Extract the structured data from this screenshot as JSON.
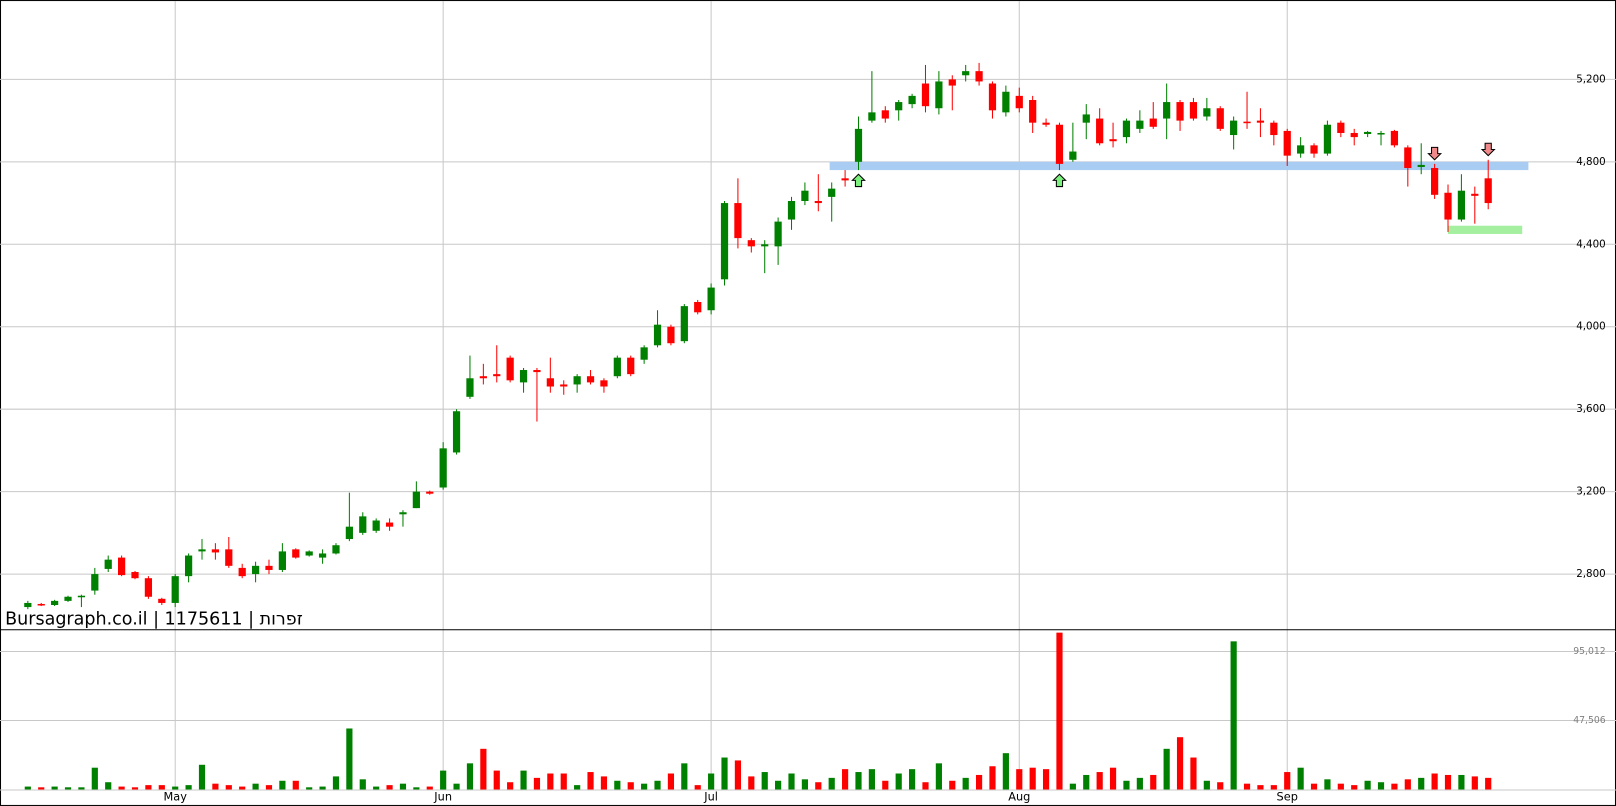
{
  "chart_data": {
    "type": "candlestick",
    "watermark": "Bursagraph.co.il | 1175611 | תורפז",
    "categories": [
      null,
      null,
      null,
      null,
      null,
      null,
      null,
      null,
      null,
      null,
      null,
      "May",
      null,
      null,
      null,
      null,
      null,
      null,
      null,
      null,
      null,
      null,
      null,
      null,
      null,
      null,
      null,
      null,
      null,
      null,
      null,
      "Jun",
      null,
      null,
      null,
      null,
      null,
      null,
      null,
      null,
      null,
      null,
      null,
      null,
      null,
      null,
      null,
      null,
      null,
      null,
      null,
      "Jul",
      null,
      null,
      null,
      null,
      null,
      null,
      null,
      null,
      null,
      null,
      null,
      null,
      null,
      null,
      null,
      null,
      null,
      null,
      null,
      null,
      null,
      null,
      "Aug",
      null,
      null,
      null,
      null,
      null,
      null,
      null,
      null,
      null,
      null,
      null,
      null,
      null,
      null,
      null,
      null,
      null,
      null,
      null,
      "Sep",
      null,
      null,
      null,
      null,
      null,
      null,
      null,
      null,
      null,
      null,
      null,
      null,
      null,
      null,
      null
    ],
    "open": [
      2640,
      2655,
      2650,
      2670,
      2690,
      2720,
      2825,
      2880,
      2810,
      2780,
      2680,
      2660,
      2790,
      2910,
      2920,
      2920,
      2830,
      2800,
      2840,
      2820,
      2920,
      2890,
      2880,
      2900,
      2970,
      3000,
      3010,
      3050,
      3090,
      3120,
      3200,
      3220,
      3390,
      3660,
      3760,
      3770,
      3850,
      3730,
      3790,
      3750,
      3720,
      3720,
      3760,
      3740,
      3760,
      3850,
      3840,
      3910,
      4000,
      3930,
      4120,
      4080,
      4230,
      4600,
      4420,
      4390,
      4390,
      4520,
      4610,
      4610,
      4630,
      4720,
      4800,
      5000,
      5050,
      5050,
      5080,
      5180,
      5060,
      5200,
      5220,
      5240,
      5180,
      5040,
      5120,
      5100,
      4990,
      4980,
      4810,
      4990,
      5010,
      4910,
      4920,
      4960,
      5010,
      5010,
      5090,
      5090,
      5020,
      5060,
      4930,
      4995,
      5000,
      4990,
      4950,
      4840,
      4880,
      4840,
      4990,
      4940,
      4935,
      4935,
      4950,
      4870,
      4775,
      4770,
      4650,
      4520,
      4645,
      4720
    ],
    "high": [
      2670,
      2660,
      2675,
      2695,
      2700,
      2830,
      2890,
      2890,
      2815,
      2790,
      2685,
      2800,
      2900,
      2970,
      2950,
      2980,
      2850,
      2860,
      2870,
      2950,
      2925,
      2915,
      2920,
      2950,
      3195,
      3100,
      3070,
      3070,
      3110,
      3250,
      3205,
      3440,
      3600,
      3860,
      3820,
      3910,
      3860,
      3800,
      3800,
      3850,
      3740,
      3770,
      3790,
      3750,
      3860,
      3860,
      3910,
      4080,
      4010,
      4110,
      4130,
      4210,
      4610,
      4720,
      4430,
      4420,
      4530,
      4630,
      4700,
      4740,
      4700,
      4760,
      5020,
      5240,
      5070,
      5100,
      5130,
      5270,
      5240,
      5220,
      5270,
      5280,
      5190,
      5170,
      5160,
      5120,
      5010,
      4990,
      4990,
      5080,
      5060,
      4990,
      5010,
      5050,
      5090,
      5180,
      5100,
      5110,
      5110,
      5070,
      5020,
      5140,
      5060,
      5000,
      4960,
      4920,
      4890,
      5000,
      5000,
      4960,
      4950,
      4950,
      4955,
      4880,
      4890,
      4790,
      4690,
      4740,
      4680,
      4810
    ],
    "low": [
      2630,
      2645,
      2645,
      2665,
      2640,
      2700,
      2810,
      2790,
      2775,
      2680,
      2650,
      2640,
      2760,
      2870,
      2870,
      2830,
      2780,
      2760,
      2800,
      2810,
      2875,
      2885,
      2850,
      2895,
      2960,
      2990,
      3000,
      3010,
      3030,
      3120,
      3185,
      3210,
      3380,
      3650,
      3720,
      3730,
      3730,
      3680,
      3540,
      3680,
      3670,
      3680,
      3720,
      3680,
      3750,
      3760,
      3820,
      3900,
      3910,
      3920,
      4060,
      4060,
      4200,
      4380,
      4360,
      4260,
      4300,
      4470,
      4590,
      4560,
      4510,
      4680,
      4760,
      4990,
      4990,
      5000,
      5060,
      5040,
      5030,
      5050,
      5190,
      5170,
      5010,
      5020,
      5040,
      4940,
      4970,
      4760,
      4800,
      4910,
      4880,
      4870,
      4890,
      4940,
      4960,
      4910,
      4950,
      5000,
      5000,
      4950,
      4860,
      4960,
      4920,
      4880,
      4780,
      4820,
      4820,
      4830,
      4920,
      4880,
      4920,
      4880,
      4870,
      4680,
      4740,
      4620,
      4460,
      4510,
      4500,
      4570
    ],
    "close": [
      2660,
      2650,
      2670,
      2690,
      2695,
      2800,
      2870,
      2795,
      2780,
      2690,
      2660,
      2790,
      2890,
      2920,
      2905,
      2840,
      2790,
      2840,
      2820,
      2910,
      2880,
      2910,
      2900,
      2940,
      3030,
      3080,
      3060,
      3030,
      3100,
      3200,
      3190,
      3410,
      3590,
      3750,
      3750,
      3760,
      3740,
      3790,
      3780,
      3710,
      3710,
      3760,
      3730,
      3710,
      3850,
      3770,
      3900,
      4010,
      3920,
      4100,
      4070,
      4190,
      4600,
      4430,
      4390,
      4400,
      4510,
      4610,
      4660,
      4600,
      4670,
      4710,
      4960,
      5040,
      5010,
      5090,
      5120,
      5070,
      5190,
      5170,
      5240,
      5190,
      5050,
      5140,
      5060,
      4990,
      4980,
      4790,
      4850,
      5030,
      4890,
      4900,
      5000,
      5000,
      4970,
      5090,
      5000,
      5010,
      5060,
      4960,
      5000,
      4990,
      4990,
      4930,
      4830,
      4880,
      4840,
      4980,
      4940,
      4920,
      4945,
      4940,
      4880,
      4770,
      4785,
      4640,
      4520,
      4660,
      4635,
      4600
    ],
    "volume": [
      2000,
      1500,
      2000,
      1500,
      1500,
      15000,
      5000,
      2000,
      1500,
      3000,
      3000,
      2000,
      3000,
      17000,
      4000,
      3000,
      2000,
      4000,
      3000,
      6000,
      6000,
      1500,
      2000,
      9000,
      42000,
      7000,
      2000,
      3000,
      4000,
      1500,
      2000,
      13000,
      4000,
      18000,
      28000,
      13000,
      5000,
      13000,
      8000,
      11000,
      11000,
      3000,
      12000,
      9000,
      6000,
      5000,
      4000,
      6000,
      11000,
      18000,
      3000,
      11000,
      22000,
      20000,
      9000,
      12000,
      6000,
      11000,
      7000,
      5000,
      8000,
      14000,
      12000,
      14000,
      6000,
      11000,
      14000,
      5000,
      18000,
      6000,
      8000,
      10000,
      16000,
      25000,
      14000,
      15000,
      14000,
      108000,
      4000,
      10000,
      12000,
      15000,
      6000,
      8000,
      10000,
      28000,
      36000,
      22000,
      6000,
      5000,
      102000,
      4000,
      3000,
      3000,
      12000,
      15000,
      4000,
      7000,
      4000,
      3000,
      6000,
      5000,
      4000,
      7000,
      8000,
      11000,
      10000,
      10000,
      9000,
      8000
    ],
    "up_color": "#008000",
    "down_color": "#ff0000",
    "ylim": [
      2530,
      5585
    ],
    "yticks": [
      {
        "value": 2800,
        "label": "2,800"
      },
      {
        "value": 3200,
        "label": "3,200"
      },
      {
        "value": 3600,
        "label": "3,600"
      },
      {
        "value": 4000,
        "label": "4,000"
      },
      {
        "value": 4400,
        "label": "4,400"
      },
      {
        "value": 4800,
        "label": "4,800"
      },
      {
        "value": 5200,
        "label": "5,200"
      }
    ],
    "volume_ylim": [
      0,
      110000
    ],
    "volume_yticks": [
      {
        "value": 47506,
        "label": "47,506"
      },
      {
        "value": 95012,
        "label": "95,012"
      }
    ],
    "levels": [
      {
        "value": 4780,
        "color": "#a8ccf2"
      },
      {
        "value": 4470,
        "color": "#a4f0a0"
      }
    ],
    "signals": [
      {
        "index": 62,
        "direction": "up"
      },
      {
        "index": 77,
        "direction": "up"
      },
      {
        "index": 105,
        "direction": "down"
      },
      {
        "index": 109,
        "direction": "down"
      }
    ],
    "grid": true
  }
}
